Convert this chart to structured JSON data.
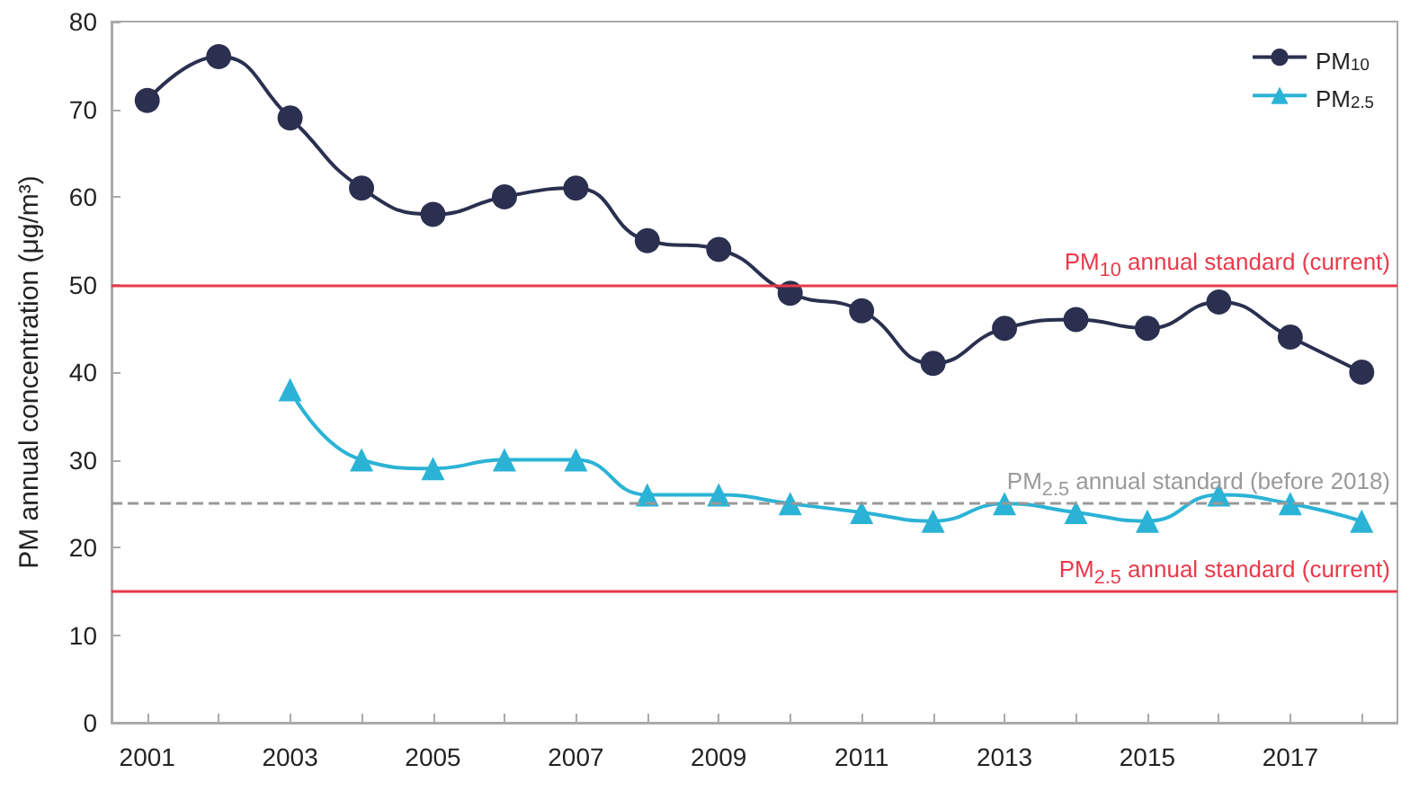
{
  "chart_data": {
    "type": "line",
    "ylabel": "PM annual concentration (μg/m³)",
    "categories": [
      "2001",
      null,
      "2003",
      null,
      "2005",
      null,
      "2007",
      null,
      "2009",
      null,
      "2011",
      null,
      "2013",
      null,
      "2015",
      null,
      "2017",
      null
    ],
    "series": [
      {
        "name": "PM$_{10}$",
        "color": "#2b3050",
        "marker": "circle",
        "values": [
          71,
          76,
          69,
          61,
          58,
          60,
          61,
          55,
          54,
          49,
          47,
          41,
          45,
          46,
          45,
          48,
          44,
          40
        ]
      },
      {
        "name": "PM$_{2.5}$",
        "color": "#2bb3d6",
        "marker": "triangle",
        "values": [
          null,
          null,
          38,
          30,
          29,
          30,
          30,
          26,
          26,
          25,
          24,
          23,
          25,
          24,
          23,
          26,
          25,
          23
        ]
      }
    ],
    "ylim": [
      0,
      80
    ],
    "yticks": [
      0,
      10,
      20,
      30,
      40,
      50,
      60,
      70,
      80
    ],
    "grid": false,
    "legend": "top right",
    "ref_lines": [
      {
        "axis": "y",
        "value": 50,
        "label": "PM$_{10}$ annual standard (current)",
        "color": "#e8394a",
        "line_style": "solid"
      },
      {
        "axis": "y",
        "value": 25,
        "label": "PM$_{2.5}$ annual standard (before 2018)",
        "color": "#999999",
        "line_style": "dashed"
      },
      {
        "axis": "y",
        "value": 15,
        "label": "PM$_{2.5}$ annual standard (current)",
        "color": "#e8394a",
        "line_style": "solid"
      }
    ]
  }
}
